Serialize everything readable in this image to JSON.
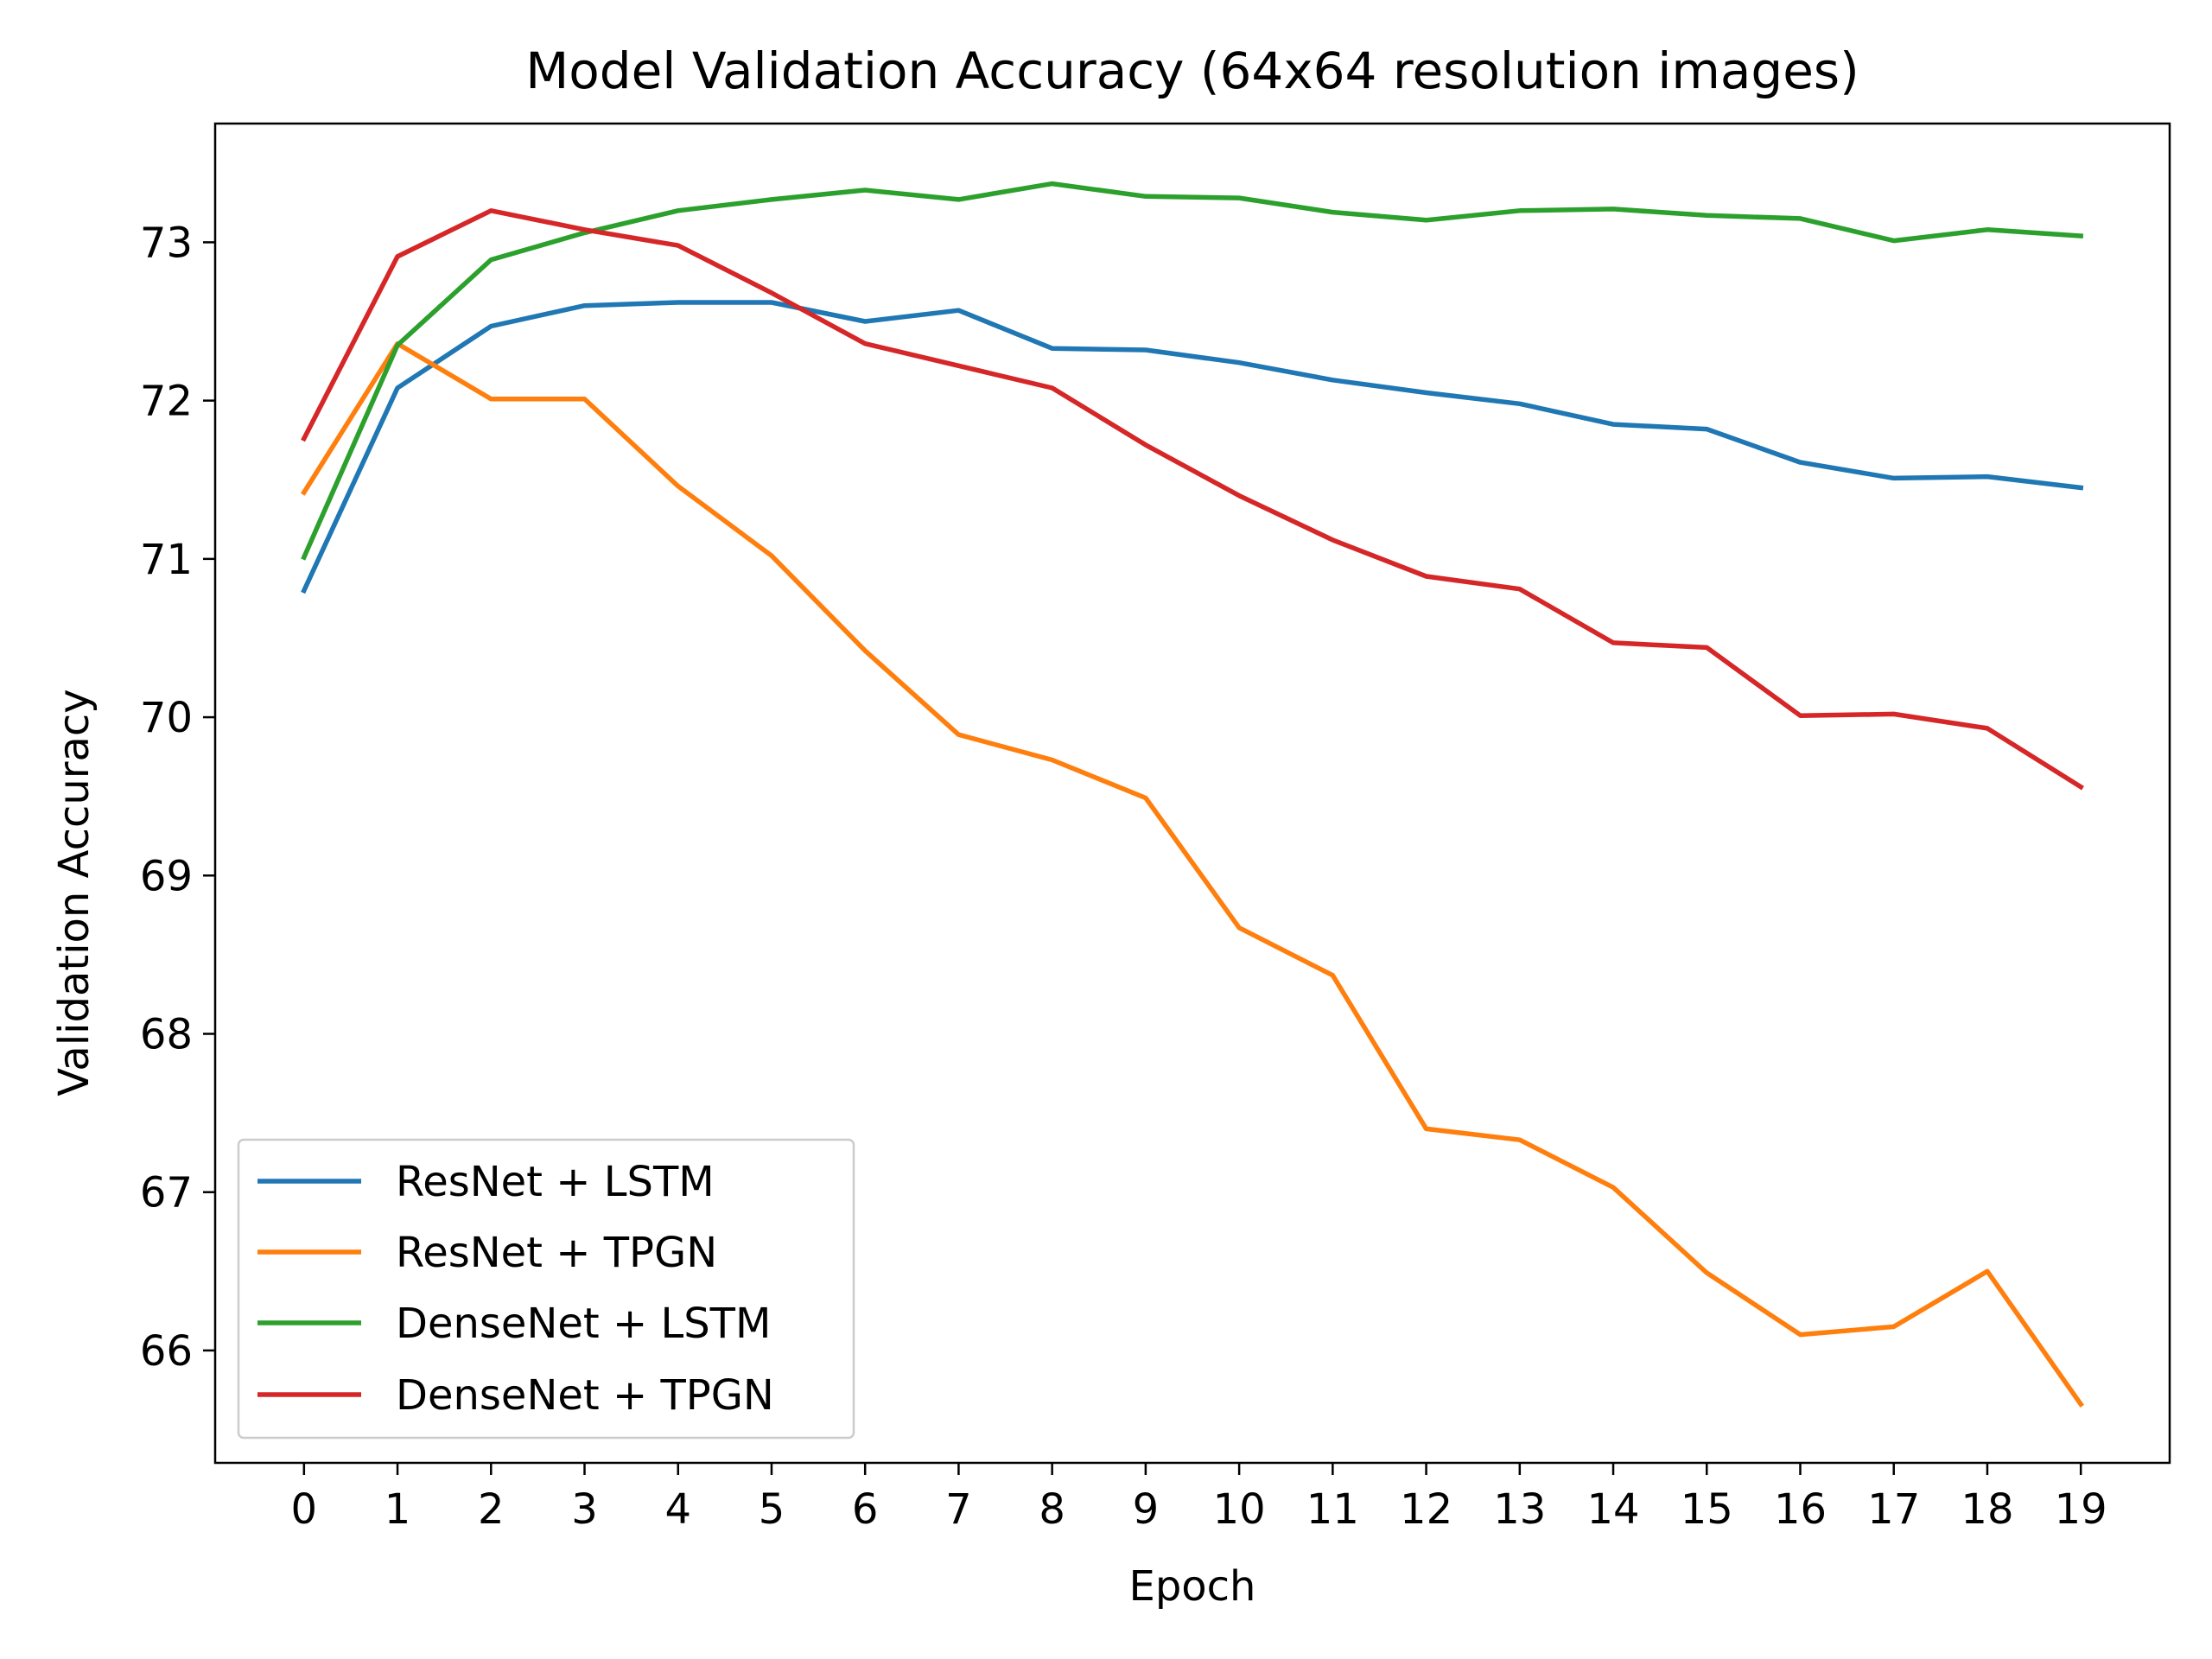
{
  "chart_data": {
    "type": "line",
    "title": "Model Validation Accuracy (64x64 resolution images)",
    "xlabel": "Epoch",
    "ylabel": "Validation Accuracy",
    "x": [
      0,
      1,
      2,
      3,
      4,
      5,
      6,
      7,
      8,
      9,
      10,
      11,
      12,
      13,
      14,
      15,
      16,
      17,
      18,
      19
    ],
    "xlim": [
      -0.95,
      19.95
    ],
    "ylim": [
      65.29,
      73.75
    ],
    "yticks": [
      66,
      67,
      68,
      69,
      70,
      71,
      72,
      73
    ],
    "grid": false,
    "legend_position": "lower-left",
    "series": [
      {
        "name": "ResNet + LSTM",
        "color": "#1f77b4",
        "values": [
          70.8,
          72.08,
          72.47,
          72.6,
          72.62,
          72.62,
          72.5,
          72.57,
          72.33,
          72.32,
          72.24,
          72.13,
          72.05,
          71.98,
          71.85,
          71.82,
          71.61,
          71.51,
          71.52,
          71.45
        ]
      },
      {
        "name": "ResNet + TPGN",
        "color": "#ff7f0e",
        "values": [
          71.42,
          72.36,
          72.01,
          72.01,
          71.46,
          71.02,
          70.42,
          69.89,
          69.73,
          69.49,
          68.67,
          68.37,
          67.4,
          67.33,
          67.03,
          66.49,
          66.1,
          66.15,
          66.5,
          65.66
        ]
      },
      {
        "name": "DenseNet + LSTM",
        "color": "#2ca02c",
        "values": [
          71.01,
          72.35,
          72.89,
          73.06,
          73.2,
          73.27,
          73.33,
          73.27,
          73.37,
          73.29,
          73.28,
          73.19,
          73.14,
          73.2,
          73.21,
          73.17,
          73.15,
          73.01,
          73.08,
          73.04
        ]
      },
      {
        "name": "DenseNet + TPGN",
        "color": "#d62728",
        "values": [
          71.76,
          72.91,
          73.2,
          73.08,
          72.98,
          72.68,
          72.36,
          72.22,
          72.08,
          71.72,
          71.4,
          71.12,
          70.89,
          70.81,
          70.47,
          70.44,
          70.01,
          70.02,
          69.93,
          69.56
        ]
      }
    ]
  }
}
